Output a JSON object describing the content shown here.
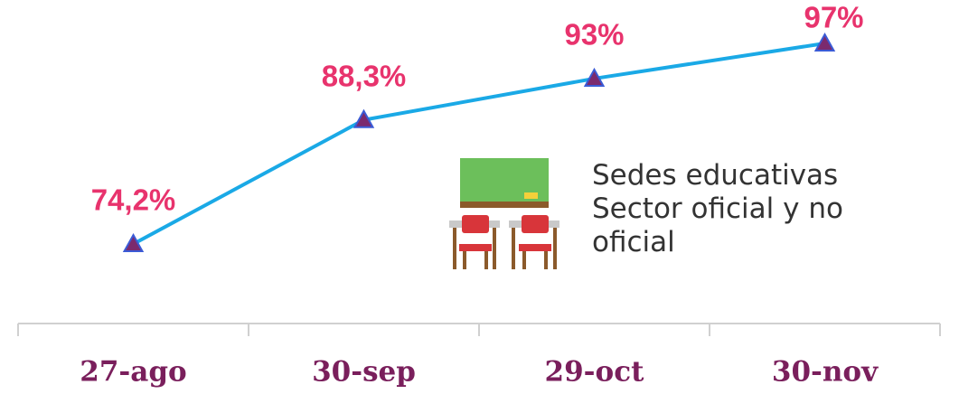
{
  "chart_data": {
    "type": "line",
    "categories": [
      "27-ago",
      "30-sep",
      "29-oct",
      "30-nov"
    ],
    "series": [
      {
        "color": "#1aa9e6",
        "values": [
          74.2,
          88.3,
          93,
          97
        ],
        "value_labels": [
          "74,2%",
          "88,3%",
          "93%",
          "97%"
        ]
      }
    ],
    "annotation": "Sedes educativas Sector oficial y no oficial"
  }
}
